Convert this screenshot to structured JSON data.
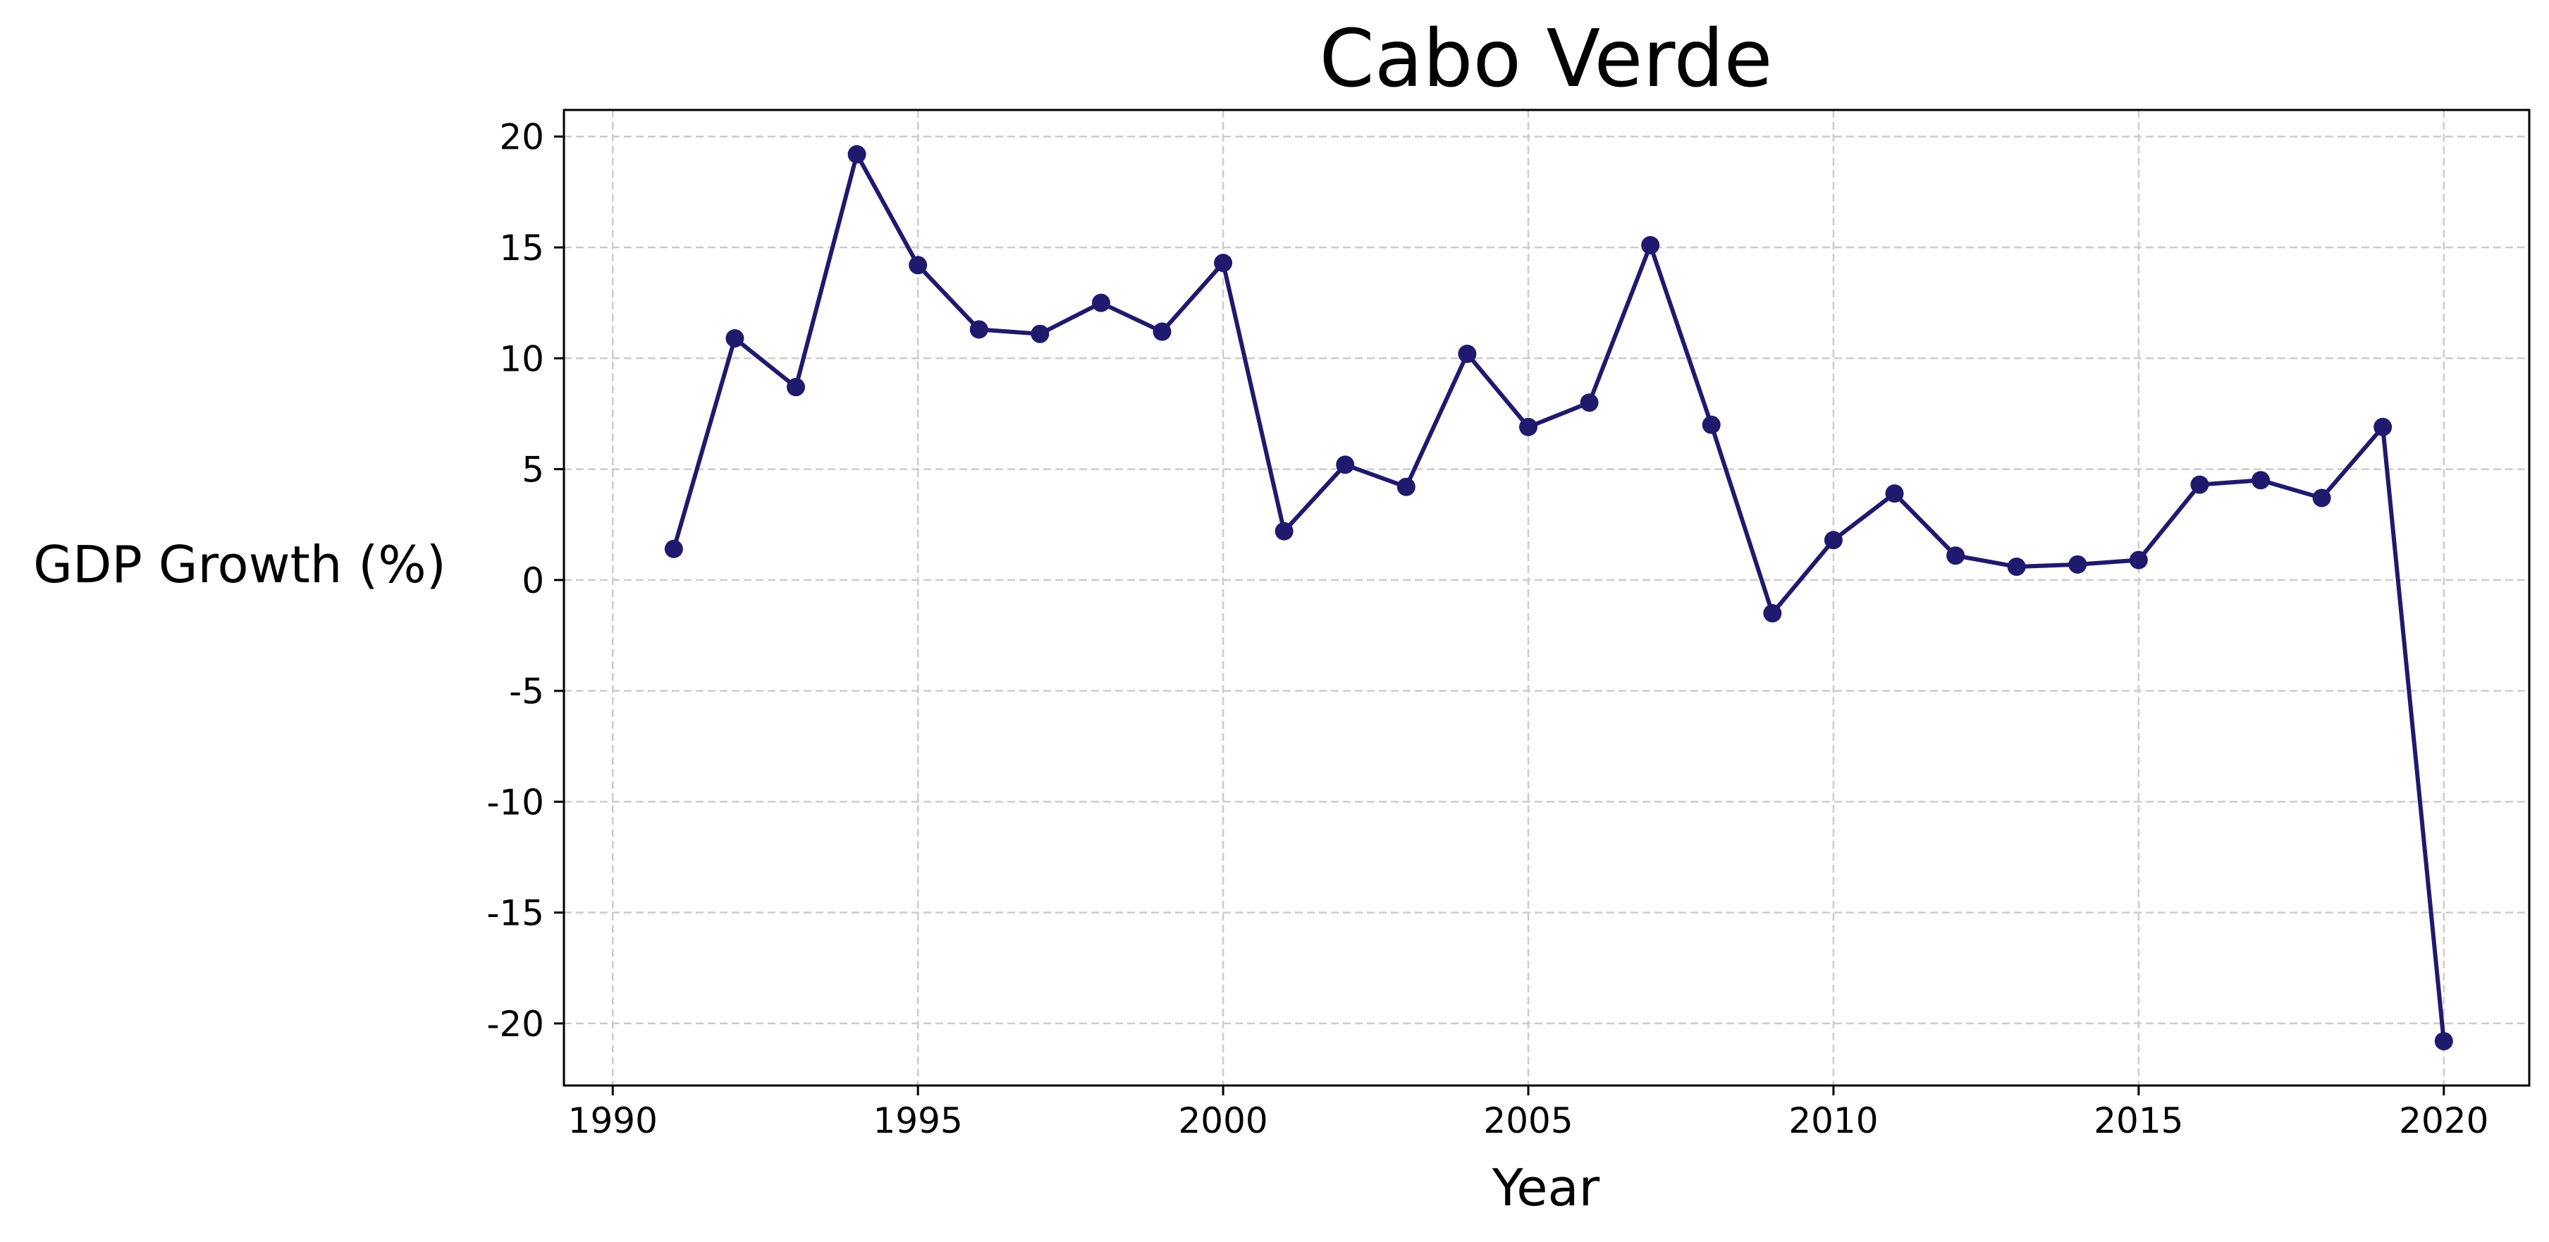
{
  "chart_data": {
    "type": "line",
    "title": "Cabo Verde",
    "xlabel": "Year",
    "ylabel": "GDP Growth (%)",
    "xlim": [
      1989.2,
      2021.4
    ],
    "ylim": [
      -22.8,
      21.2
    ],
    "xticks": [
      1990,
      1995,
      2000,
      2005,
      2010,
      2015,
      2020
    ],
    "yticks": [
      -20,
      -15,
      -10,
      -5,
      0,
      5,
      10,
      15,
      20
    ],
    "grid": true,
    "legend": "none",
    "line_color": "#1f1a6e",
    "series": [
      {
        "x": [
          1991,
          1992,
          1993,
          1994,
          1995,
          1996,
          1997,
          1998,
          1999,
          2000,
          2001,
          2002,
          2003,
          2004,
          2005,
          2006,
          2007,
          2008,
          2009,
          2010,
          2011,
          2012,
          2013,
          2014,
          2015,
          2016,
          2017,
          2018,
          2019,
          2020
        ],
        "y": [
          1.4,
          10.9,
          8.7,
          19.2,
          14.2,
          11.3,
          11.1,
          12.5,
          11.2,
          14.3,
          2.2,
          5.2,
          4.2,
          10.2,
          6.9,
          8.0,
          15.1,
          7.0,
          -1.5,
          1.8,
          3.9,
          1.1,
          0.6,
          0.7,
          0.9,
          4.3,
          4.5,
          3.7,
          6.9,
          -20.8
        ]
      }
    ]
  }
}
